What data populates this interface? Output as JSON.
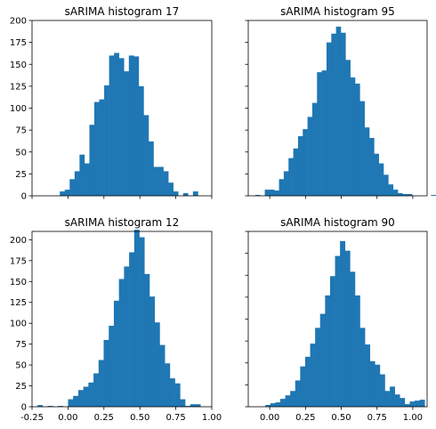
{
  "chart_data": [
    {
      "type": "bar",
      "title": "sARIMA histogram 17",
      "xlim": [
        -0.25,
        1.0
      ],
      "ylim": [
        0,
        200
      ],
      "yticks": [
        0,
        25,
        50,
        75,
        100,
        125,
        150,
        175,
        200
      ],
      "xticks": [
        -0.25,
        0.0,
        0.25,
        0.5,
        0.75,
        1.0
      ],
      "bin_start": -0.057,
      "bin_width": 0.0343,
      "counts": [
        5,
        7,
        19,
        28,
        47,
        37,
        81,
        107,
        110,
        126,
        160,
        163,
        157,
        142,
        160,
        159,
        125,
        92,
        62,
        33,
        33,
        28,
        15,
        5,
        0,
        3,
        0,
        5
      ]
    },
    {
      "type": "bar",
      "title": "sARIMA histogram 95",
      "xlim": [
        -0.15,
        1.1
      ],
      "ylim": [
        0,
        200
      ],
      "yticks": [
        0,
        25,
        50,
        75,
        100,
        125,
        150,
        175,
        200
      ],
      "xticks": [
        0.0,
        0.25,
        0.5,
        0.75,
        1.0
      ],
      "bin_start": -0.101,
      "bin_width": 0.0332,
      "counts": [
        1,
        0,
        7,
        7,
        6,
        19,
        28,
        43,
        54,
        68,
        76,
        90,
        106,
        141,
        143,
        175,
        185,
        193,
        186,
        155,
        135,
        128,
        108,
        78,
        66,
        48,
        37,
        24,
        13,
        7,
        3,
        2,
        2,
        0,
        0,
        0,
        0,
        1
      ]
    },
    {
      "type": "bar",
      "title": "sARIMA histogram 12",
      "xlim": [
        -0.25,
        1.0
      ],
      "ylim": [
        0,
        210
      ],
      "yticks": [
        0,
        25,
        50,
        75,
        100,
        125,
        150,
        175,
        200
      ],
      "xticks": [
        -0.25,
        0.0,
        0.25,
        0.5,
        0.75,
        1.0
      ],
      "bin_start": -0.212,
      "bin_width": 0.0354,
      "counts": [
        2,
        0,
        1,
        0,
        1,
        0,
        9,
        13,
        20,
        24,
        29,
        40,
        56,
        80,
        97,
        127,
        153,
        168,
        185,
        212,
        203,
        159,
        132,
        101,
        74,
        52,
        34,
        28,
        9,
        1,
        3,
        3
      ]
    },
    {
      "type": "bar",
      "title": "sARIMA histogram 90",
      "xlim": [
        -0.15,
        1.1
      ],
      "ylim": [
        0,
        200
      ],
      "yticks": [
        0,
        25,
        50,
        75,
        100,
        125,
        150,
        175,
        200
      ],
      "xticks": [
        0.0,
        0.25,
        0.5,
        0.75,
        1.0
      ],
      "bin_start": -0.0307,
      "bin_width": 0.0348,
      "counts": [
        2,
        4,
        5,
        9,
        13,
        18,
        30,
        46,
        57,
        72,
        90,
        106,
        127,
        149,
        172,
        189,
        178,
        154,
        127,
        90,
        71,
        52,
        48,
        37,
        18,
        23,
        14,
        10,
        3,
        6,
        7,
        8
      ]
    }
  ]
}
